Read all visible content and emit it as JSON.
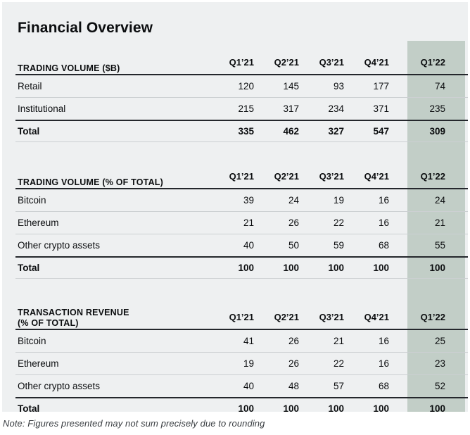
{
  "title": "Financial Overview",
  "note": "Note: Figures presented may not sum precisely due to rounding",
  "colors": {
    "card_bg": "#eef0f1",
    "highlight_column_bg": "#c2cec7",
    "rule_dark": "#24272c",
    "rule_light": "#ccd0d2",
    "text": "#0b0d0f"
  },
  "chart_data": {
    "type": "table",
    "title": "Financial Overview",
    "columns": [
      "Q1’21",
      "Q2’21",
      "Q3’21",
      "Q4’21",
      "Q1’22"
    ],
    "highlight_column": "Q1’22",
    "legend_position": "none",
    "grid": "horizontal-rules",
    "sections": [
      {
        "header": "TRADING VOLUME ($B)",
        "header_line2": "",
        "rows": [
          {
            "label": "Retail",
            "values": [
              "120",
              "145",
              "93",
              "177",
              "74"
            ]
          },
          {
            "label": "Institutional",
            "values": [
              "215",
              "317",
              "234",
              "371",
              "235"
            ]
          }
        ],
        "total": {
          "label": "Total",
          "values": [
            "335",
            "462",
            "327",
            "547",
            "309"
          ]
        }
      },
      {
        "header": "TRADING VOLUME (% OF TOTAL)",
        "header_line2": "",
        "rows": [
          {
            "label": "Bitcoin",
            "values": [
              "39",
              "24",
              "19",
              "16",
              "24"
            ]
          },
          {
            "label": "Ethereum",
            "values": [
              "21",
              "26",
              "22",
              "16",
              "21"
            ]
          },
          {
            "label": "Other crypto assets",
            "values": [
              "40",
              "50",
              "59",
              "68",
              "55"
            ]
          }
        ],
        "total": {
          "label": "Total",
          "values": [
            "100",
            "100",
            "100",
            "100",
            "100"
          ]
        }
      },
      {
        "header": "TRANSACTION REVENUE",
        "header_line2": "(% OF TOTAL)",
        "rows": [
          {
            "label": "Bitcoin",
            "values": [
              "41",
              "26",
              "21",
              "16",
              "25"
            ]
          },
          {
            "label": "Ethereum",
            "values": [
              "19",
              "26",
              "22",
              "16",
              "23"
            ]
          },
          {
            "label": "Other crypto assets",
            "values": [
              "40",
              "48",
              "57",
              "68",
              "52"
            ]
          }
        ],
        "total": {
          "label": "Total",
          "values": [
            "100",
            "100",
            "100",
            "100",
            "100"
          ]
        }
      }
    ],
    "note": "Note: Figures presented may not sum precisely due to rounding"
  }
}
